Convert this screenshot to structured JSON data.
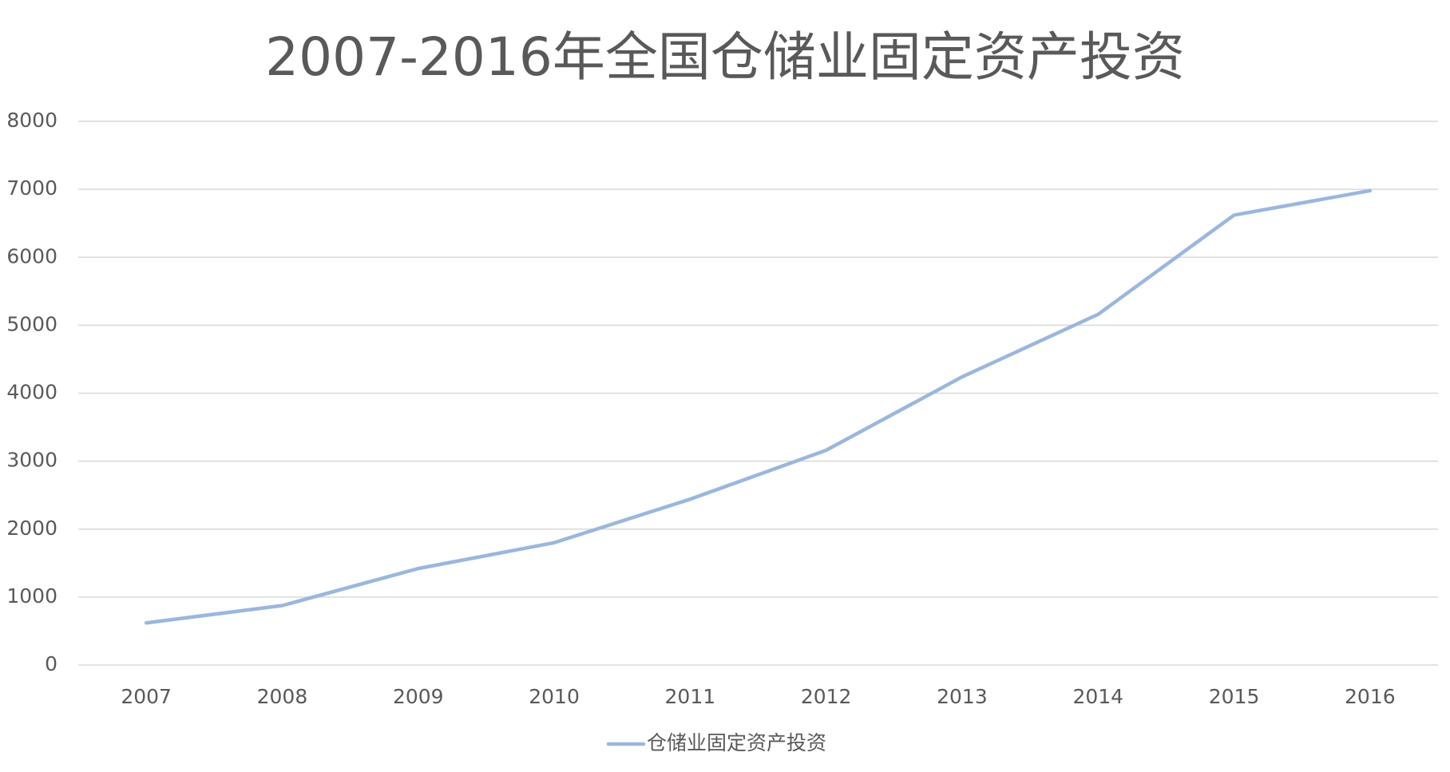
{
  "chart_data": {
    "type": "line",
    "title": "2007-2016年全国仓储业固定资产投资",
    "categories": [
      "2007",
      "2008",
      "2009",
      "2010",
      "2011",
      "2012",
      "2013",
      "2014",
      "2015",
      "2016"
    ],
    "series": [
      {
        "name": "仓储业固定资产投资",
        "color": "#9ab7dd",
        "values": [
          620,
          875,
          1420,
          1800,
          2440,
          3160,
          4240,
          5160,
          6620,
          6980
        ]
      }
    ],
    "ylim": [
      0,
      8000
    ],
    "yticks": [
      0,
      1000,
      2000,
      3000,
      4000,
      5000,
      6000,
      7000,
      8000
    ],
    "grid": true,
    "legend": "bottom"
  }
}
